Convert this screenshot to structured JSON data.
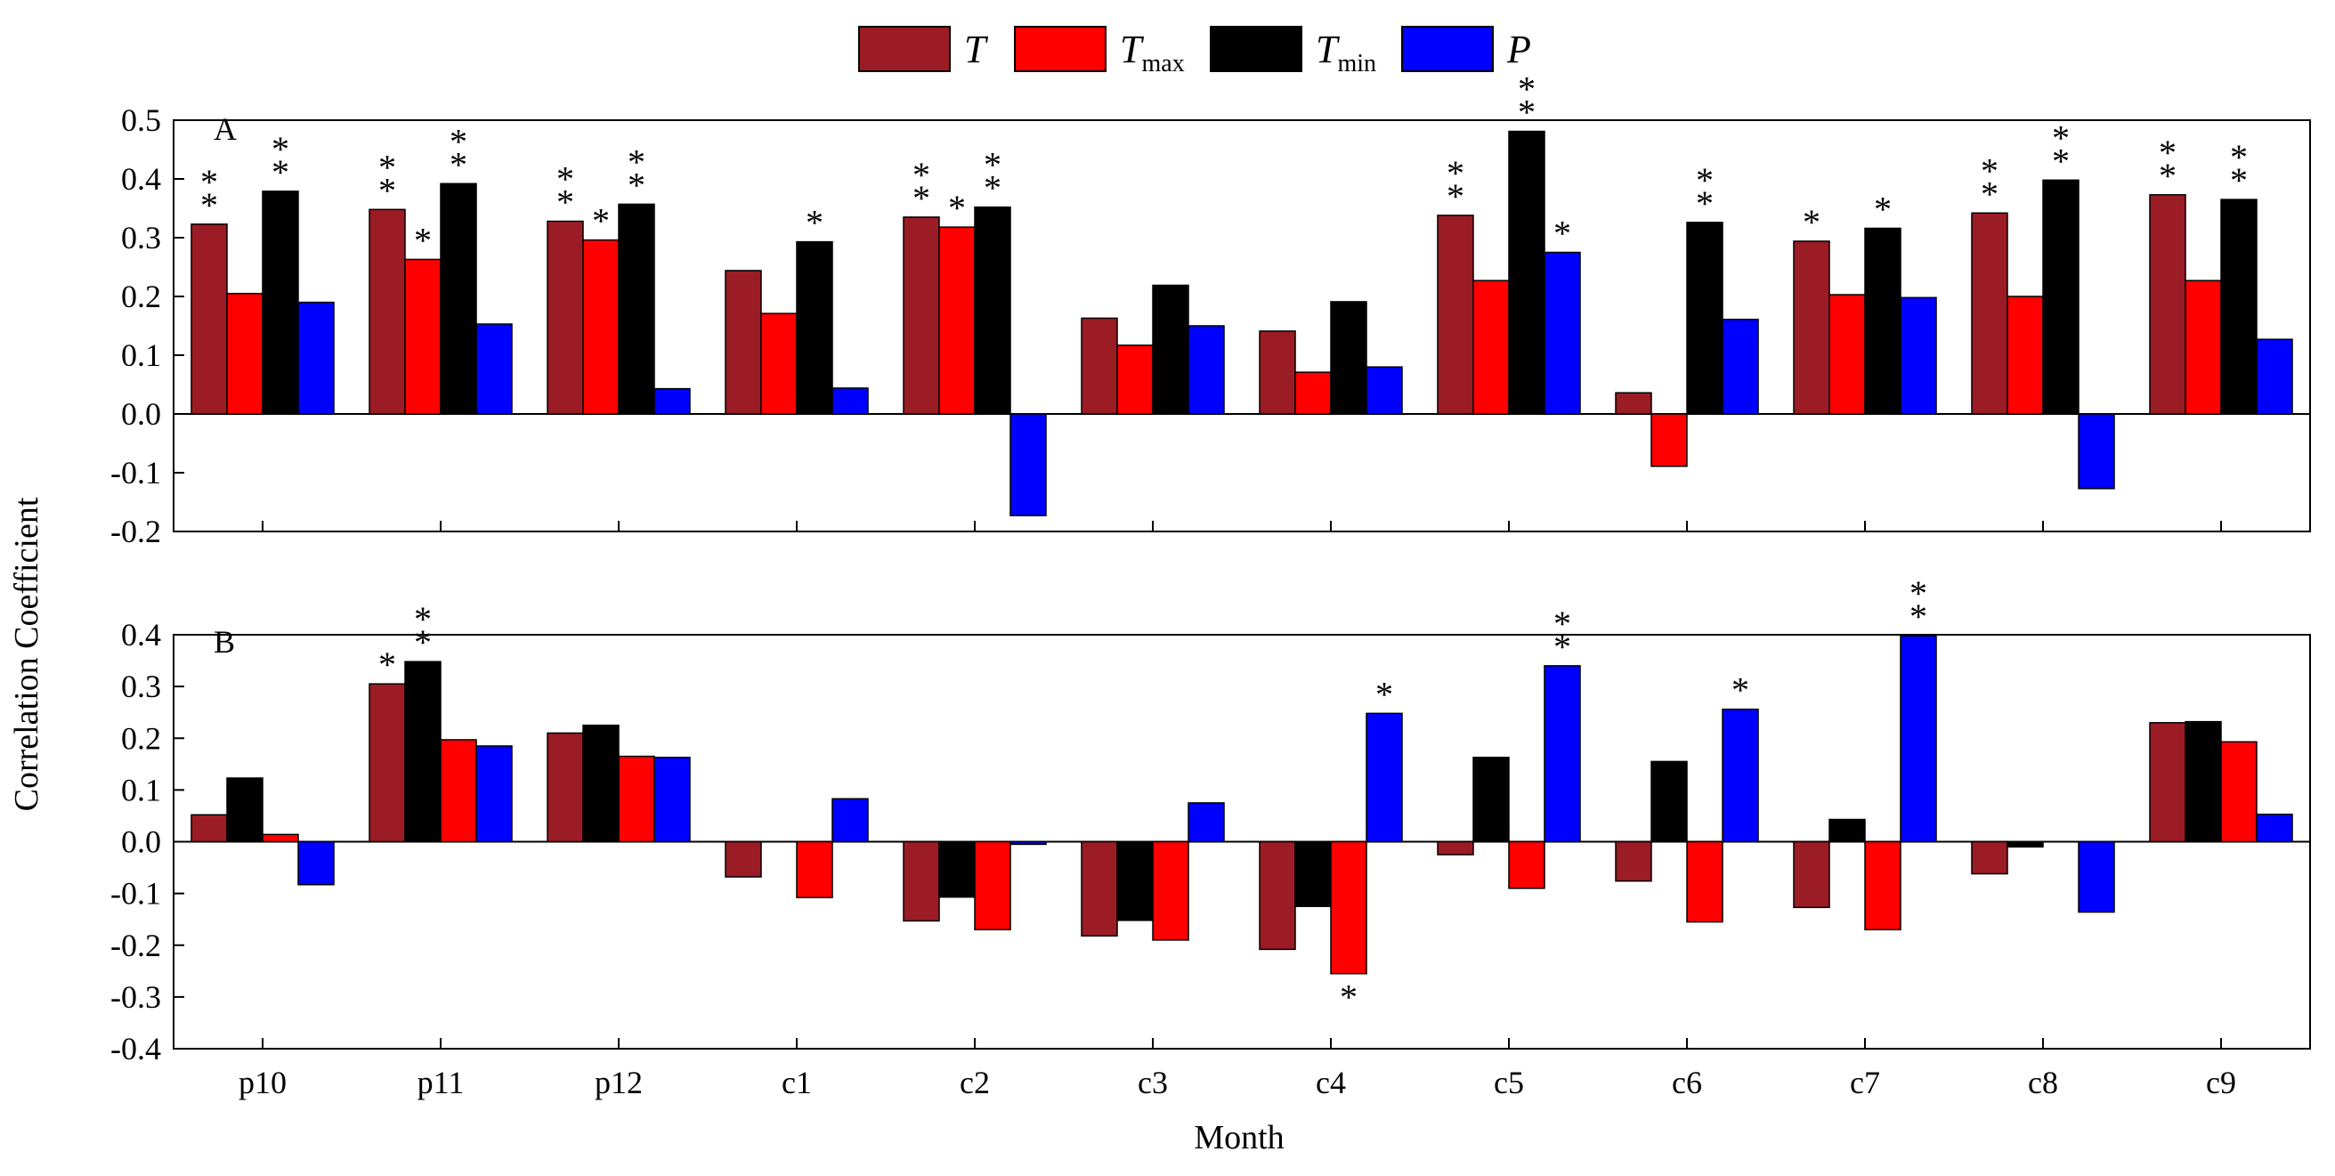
{
  "chart_data": {
    "type": "bar",
    "xlabel": "Month",
    "ylabel": "Correlation Coefficient",
    "categories": [
      "p10",
      "p11",
      "p12",
      "c1",
      "c2",
      "c3",
      "c4",
      "c5",
      "c6",
      "c7",
      "c8",
      "c9"
    ],
    "legend": [
      {
        "key": "T",
        "base": "T",
        "sub": "",
        "color": "#9b1c24"
      },
      {
        "key": "Tmax",
        "base": "T",
        "sub": "max",
        "color": "#ff0000"
      },
      {
        "key": "Tmin",
        "base": "T",
        "sub": "min",
        "color": "#000000"
      },
      {
        "key": "P",
        "base": "P",
        "sub": "",
        "color": "#0000ff"
      }
    ],
    "panels": [
      {
        "label": "A",
        "ylim": [
          -0.2,
          0.5
        ],
        "yticks": [
          0.5,
          0.4,
          0.3,
          0.2,
          0.1,
          0.0,
          -0.1,
          -0.2
        ],
        "ytick_labels": [
          "0.5",
          "0.4",
          "0.3",
          "0.2",
          "0.1",
          "0.0",
          "-0.1",
          "-0.2"
        ],
        "series": [
          {
            "name": "T",
            "values": [
              0.323,
              0.348,
              0.328,
              0.244,
              0.335,
              0.163,
              0.141,
              0.338,
              0.036,
              0.294,
              0.342,
              0.373
            ],
            "significance": [
              "**",
              "**",
              "**",
              "",
              "**",
              "",
              "",
              "**",
              "",
              "*",
              "**",
              "**"
            ]
          },
          {
            "name": "Tmax",
            "values": [
              0.205,
              0.263,
              0.296,
              0.171,
              0.318,
              0.117,
              0.071,
              0.227,
              -0.089,
              0.203,
              0.2,
              0.227
            ],
            "significance": [
              "",
              "*",
              "*",
              "",
              "*",
              "",
              "",
              "",
              "",
              "",
              "",
              ""
            ]
          },
          {
            "name": "Tmin",
            "values": [
              0.379,
              0.392,
              0.357,
              0.293,
              0.352,
              0.219,
              0.191,
              0.481,
              0.326,
              0.316,
              0.398,
              0.365
            ],
            "significance": [
              "**",
              "**",
              "**",
              "*",
              "**",
              "",
              "",
              "**",
              "**",
              "*",
              "**",
              "**"
            ]
          },
          {
            "name": "P",
            "values": [
              0.19,
              0.153,
              0.043,
              0.044,
              -0.173,
              0.15,
              0.08,
              0.275,
              0.161,
              0.198,
              -0.127,
              0.127
            ],
            "significance": [
              "",
              "",
              "",
              "",
              "",
              "",
              "",
              "*",
              "",
              "",
              "",
              ""
            ]
          }
        ]
      },
      {
        "label": "B",
        "ylim": [
          -0.4,
          0.4
        ],
        "yticks": [
          0.4,
          0.3,
          0.2,
          0.1,
          0.0,
          -0.1,
          -0.2,
          -0.3,
          -0.4
        ],
        "ytick_labels": [
          "0.4",
          "0.3",
          "0.2",
          "0.1",
          "0.0",
          "-0.1",
          "-0.2",
          "-0.3",
          "-0.4"
        ],
        "series": [
          {
            "name": "T",
            "values": [
              0.052,
              0.305,
              0.21,
              -0.068,
              -0.153,
              -0.182,
              -0.208,
              -0.025,
              -0.076,
              -0.127,
              -0.062,
              0.23
            ],
            "significance": [
              "",
              "*",
              "",
              "",
              "",
              "",
              "",
              "",
              "",
              "",
              "",
              ""
            ]
          },
          {
            "name": "Tmin",
            "values": [
              0.123,
              0.348,
              0.225,
              0.0,
              -0.107,
              -0.152,
              -0.125,
              0.163,
              0.155,
              0.043,
              -0.01,
              0.232
            ],
            "significance": [
              "",
              "**",
              "",
              "",
              "",
              "",
              "",
              "",
              "",
              "",
              "",
              ""
            ]
          },
          {
            "name": "Tmax",
            "values": [
              0.014,
              0.197,
              0.165,
              -0.108,
              -0.17,
              -0.19,
              -0.255,
              -0.09,
              -0.155,
              -0.17,
              0.0,
              0.193
            ],
            "significance": [
              "",
              "",
              "",
              "",
              "",
              "",
              "*",
              "",
              "",
              "",
              "",
              ""
            ]
          },
          {
            "name": "P",
            "values": [
              -0.083,
              0.185,
              0.163,
              0.083,
              -0.005,
              0.075,
              0.248,
              0.34,
              0.256,
              0.398,
              -0.136,
              0.053
            ],
            "significance": [
              "",
              "",
              "",
              "",
              "",
              "",
              "*",
              "**",
              "*",
              "**",
              "",
              ""
            ]
          }
        ]
      }
    ]
  }
}
